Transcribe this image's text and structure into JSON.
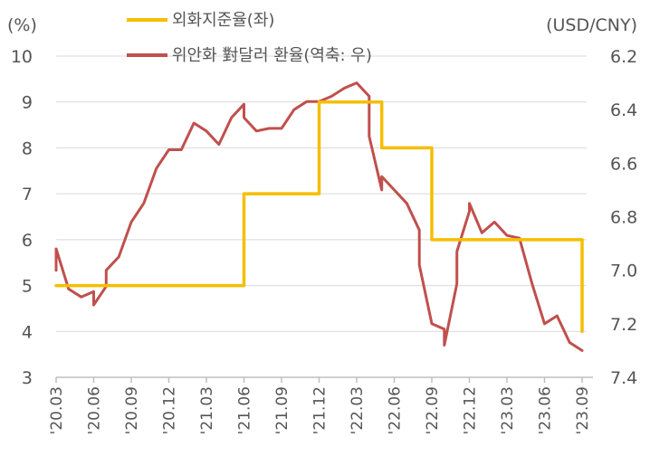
{
  "chart_data": {
    "type": "line",
    "left_unit": "(%)",
    "right_unit": "(USD/CNY)",
    "left_axis": {
      "ylim": [
        3,
        10
      ],
      "ticks": [
        "3",
        "4",
        "5",
        "6",
        "7",
        "8",
        "9",
        "10"
      ]
    },
    "right_axis": {
      "ylim": [
        6.2,
        7.4
      ],
      "inverted": true,
      "ticks": [
        "6.2",
        "6.4",
        "6.6",
        "6.8",
        "7.0",
        "7.2",
        "7.4"
      ]
    },
    "x_ticks": [
      "'20.03",
      "'20.06",
      "'20.09",
      "'20.12",
      "'21.03",
      "'21.06",
      "'21.09",
      "'21.12",
      "'22.03",
      "'22.06",
      "'22.09",
      "'22.12",
      "'23.03",
      "'23.06",
      "'23.09"
    ],
    "grid": true,
    "legend_position": "top-center",
    "series": [
      {
        "name": "외화지준율(좌)",
        "axis": "left",
        "color": "#F5BE00",
        "step": true,
        "points": [
          [
            "2020-03",
            5
          ],
          [
            "2021-06",
            5
          ],
          [
            "2021-06",
            7
          ],
          [
            "2021-12",
            7
          ],
          [
            "2021-12",
            9
          ],
          [
            "2022-05",
            9
          ],
          [
            "2022-05",
            8
          ],
          [
            "2022-09",
            8
          ],
          [
            "2022-09",
            6
          ],
          [
            "2023-09",
            6
          ],
          [
            "2023-09",
            4
          ]
        ]
      },
      {
        "name": "위안화 對달러 환율(역축: 우)",
        "axis": "right",
        "color": "#C0504D",
        "points": [
          [
            "2020-03",
            7.0
          ],
          [
            "2020-03",
            6.92
          ],
          [
            "2020-04",
            7.07
          ],
          [
            "2020-05",
            7.1
          ],
          [
            "2020-06",
            7.08
          ],
          [
            "2020-06",
            7.13
          ],
          [
            "2020-07",
            7.06
          ],
          [
            "2020-07",
            7.0
          ],
          [
            "2020-08",
            6.95
          ],
          [
            "2020-09",
            6.82
          ],
          [
            "2020-10",
            6.75
          ],
          [
            "2020-11",
            6.62
          ],
          [
            "2020-12",
            6.55
          ],
          [
            "2021-01",
            6.55
          ],
          [
            "2021-02",
            6.45
          ],
          [
            "2021-03",
            6.48
          ],
          [
            "2021-04",
            6.53
          ],
          [
            "2021-05",
            6.43
          ],
          [
            "2021-06",
            6.38
          ],
          [
            "2021-06",
            6.43
          ],
          [
            "2021-07",
            6.48
          ],
          [
            "2021-08",
            6.47
          ],
          [
            "2021-09",
            6.47
          ],
          [
            "2021-10",
            6.4
          ],
          [
            "2021-11",
            6.37
          ],
          [
            "2021-12",
            6.37
          ],
          [
            "2022-01",
            6.35
          ],
          [
            "2022-02",
            6.32
          ],
          [
            "2022-03",
            6.3
          ],
          [
            "2022-04",
            6.35
          ],
          [
            "2022-04",
            6.5
          ],
          [
            "2022-05",
            6.7
          ],
          [
            "2022-05",
            6.65
          ],
          [
            "2022-06",
            6.7
          ],
          [
            "2022-07",
            6.75
          ],
          [
            "2022-08",
            6.85
          ],
          [
            "2022-08",
            6.98
          ],
          [
            "2022-09",
            7.2
          ],
          [
            "2022-10",
            7.22
          ],
          [
            "2022-10",
            7.28
          ],
          [
            "2022-11",
            7.05
          ],
          [
            "2022-11",
            6.93
          ],
          [
            "2022-12",
            6.78
          ],
          [
            "2022-12",
            6.75
          ],
          [
            "2023-01",
            6.86
          ],
          [
            "2023-02",
            6.82
          ],
          [
            "2023-03",
            6.87
          ],
          [
            "2023-04",
            6.88
          ],
          [
            "2023-05",
            7.05
          ],
          [
            "2023-06",
            7.2
          ],
          [
            "2023-07",
            7.17
          ],
          [
            "2023-08",
            7.27
          ],
          [
            "2023-09",
            7.3
          ]
        ]
      }
    ]
  }
}
